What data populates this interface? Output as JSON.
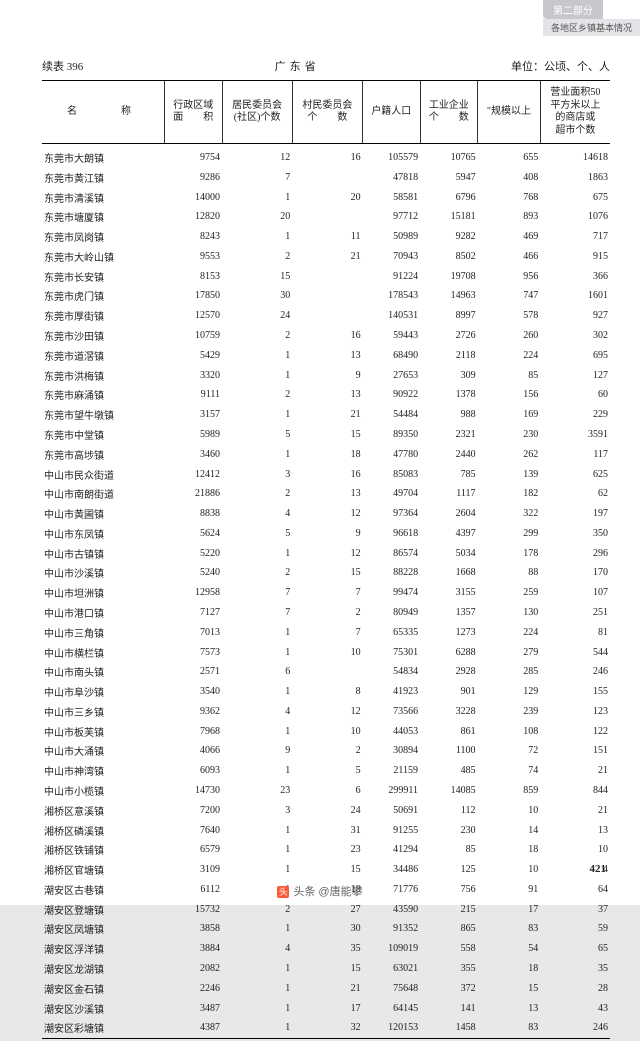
{
  "topTabs": {
    "t1": "第二部分",
    "t2": "各地区乡镇基本情况"
  },
  "header": {
    "left": "续表 396",
    "center": "广东省",
    "right": "单位：公顷、个、人"
  },
  "columns": [
    "名　　称",
    "行政区域\n面　　积",
    "居民委员会\n(社区)个数",
    "村民委员会\n个　　数",
    "户籍人口",
    "工业企业\n个　　数",
    "\"规模以上",
    "营业面积50\n平方米以上\n的商店或\n超市个数"
  ],
  "rows": [
    [
      "东莞市大朗镇",
      "9754",
      "12",
      "16",
      "105579",
      "10765",
      "655",
      "14618"
    ],
    [
      "东莞市黄江镇",
      "9286",
      "7",
      "",
      "47818",
      "5947",
      "408",
      "1863"
    ],
    [
      "东莞市清溪镇",
      "14000",
      "1",
      "20",
      "58581",
      "6796",
      "768",
      "675"
    ],
    [
      "东莞市塘厦镇",
      "12820",
      "20",
      "",
      "97712",
      "15181",
      "893",
      "1076"
    ],
    [
      "东莞市凤岗镇",
      "8243",
      "1",
      "11",
      "50989",
      "9282",
      "469",
      "717"
    ],
    [
      "东莞市大岭山镇",
      "9553",
      "2",
      "21",
      "70943",
      "8502",
      "466",
      "915"
    ],
    [
      "东莞市长安镇",
      "8153",
      "15",
      "",
      "91224",
      "19708",
      "956",
      "366"
    ],
    [
      "东莞市虎门镇",
      "17850",
      "30",
      "",
      "178543",
      "14963",
      "747",
      "1601"
    ],
    [
      "东莞市厚街镇",
      "12570",
      "24",
      "",
      "140531",
      "8997",
      "578",
      "927"
    ],
    [
      "东莞市沙田镇",
      "10759",
      "2",
      "16",
      "59443",
      "2726",
      "260",
      "302"
    ],
    [
      "东莞市道滘镇",
      "5429",
      "1",
      "13",
      "68490",
      "2118",
      "224",
      "695"
    ],
    [
      "东莞市洪梅镇",
      "3320",
      "1",
      "9",
      "27653",
      "309",
      "85",
      "127"
    ],
    [
      "东莞市麻涌镇",
      "9111",
      "2",
      "13",
      "90922",
      "1378",
      "156",
      "60"
    ],
    [
      "东莞市望牛墩镇",
      "3157",
      "1",
      "21",
      "54484",
      "988",
      "169",
      "229"
    ],
    [
      "东莞市中堂镇",
      "5989",
      "5",
      "15",
      "89350",
      "2321",
      "230",
      "3591"
    ],
    [
      "东莞市高埗镇",
      "3460",
      "1",
      "18",
      "47780",
      "2440",
      "262",
      "117"
    ],
    [
      "中山市民众街道",
      "12412",
      "3",
      "16",
      "85083",
      "785",
      "139",
      "625"
    ],
    [
      "中山市南朗街道",
      "21886",
      "2",
      "13",
      "49704",
      "1117",
      "182",
      "62"
    ],
    [
      "中山市黄圃镇",
      "8838",
      "4",
      "12",
      "97364",
      "2604",
      "322",
      "197"
    ],
    [
      "中山市东凤镇",
      "5624",
      "5",
      "9",
      "96618",
      "4397",
      "299",
      "350"
    ],
    [
      "中山市古镇镇",
      "5220",
      "1",
      "12",
      "86574",
      "5034",
      "178",
      "296"
    ],
    [
      "中山市沙溪镇",
      "5240",
      "2",
      "15",
      "88228",
      "1668",
      "88",
      "170"
    ],
    [
      "中山市坦洲镇",
      "12958",
      "7",
      "7",
      "99474",
      "3155",
      "259",
      "107"
    ],
    [
      "中山市港口镇",
      "7127",
      "7",
      "2",
      "80949",
      "1357",
      "130",
      "251"
    ],
    [
      "中山市三角镇",
      "7013",
      "1",
      "7",
      "65335",
      "1273",
      "224",
      "81"
    ],
    [
      "中山市横栏镇",
      "7573",
      "1",
      "10",
      "75301",
      "6288",
      "279",
      "544"
    ],
    [
      "中山市南头镇",
      "2571",
      "6",
      "",
      "54834",
      "2928",
      "285",
      "246"
    ],
    [
      "中山市阜沙镇",
      "3540",
      "1",
      "8",
      "41923",
      "901",
      "129",
      "155"
    ],
    [
      "中山市三乡镇",
      "9362",
      "4",
      "12",
      "73566",
      "3228",
      "239",
      "123"
    ],
    [
      "中山市板芙镇",
      "7968",
      "1",
      "10",
      "44053",
      "861",
      "108",
      "122"
    ],
    [
      "中山市大涌镇",
      "4066",
      "9",
      "2",
      "30894",
      "1100",
      "72",
      "151"
    ],
    [
      "中山市神湾镇",
      "6093",
      "1",
      "5",
      "21159",
      "485",
      "74",
      "21"
    ],
    [
      "中山市小榄镇",
      "14730",
      "23",
      "6",
      "299911",
      "14085",
      "859",
      "844"
    ],
    [
      "湘桥区意溪镇",
      "7200",
      "3",
      "24",
      "50691",
      "112",
      "10",
      "21"
    ],
    [
      "湘桥区磷溪镇",
      "7640",
      "1",
      "31",
      "91255",
      "230",
      "14",
      "13"
    ],
    [
      "湘桥区铁铺镇",
      "6579",
      "1",
      "23",
      "41294",
      "85",
      "18",
      "10"
    ],
    [
      "湘桥区官塘镇",
      "3109",
      "1",
      "15",
      "34486",
      "125",
      "10",
      "4"
    ],
    [
      "潮安区古巷镇",
      "6112",
      "1",
      "18",
      "71776",
      "756",
      "91",
      "64"
    ],
    [
      "潮安区登塘镇",
      "15732",
      "2",
      "27",
      "43590",
      "215",
      "17",
      "37"
    ],
    [
      "潮安区凤塘镇",
      "3858",
      "1",
      "30",
      "91352",
      "865",
      "83",
      "59"
    ],
    [
      "潮安区浮洋镇",
      "3884",
      "4",
      "35",
      "109019",
      "558",
      "54",
      "65"
    ],
    [
      "潮安区龙湖镇",
      "2082",
      "1",
      "15",
      "63021",
      "355",
      "18",
      "35"
    ],
    [
      "潮安区金石镇",
      "2246",
      "1",
      "21",
      "75648",
      "372",
      "15",
      "28"
    ],
    [
      "潮安区沙溪镇",
      "3487",
      "1",
      "17",
      "64145",
      "141",
      "13",
      "43"
    ],
    [
      "潮安区彩塘镇",
      "4387",
      "1",
      "32",
      "120153",
      "1458",
      "83",
      "246"
    ]
  ],
  "pageNumber": "421",
  "byline": {
    "logo": "头",
    "text": "头条 @唐能攀"
  }
}
